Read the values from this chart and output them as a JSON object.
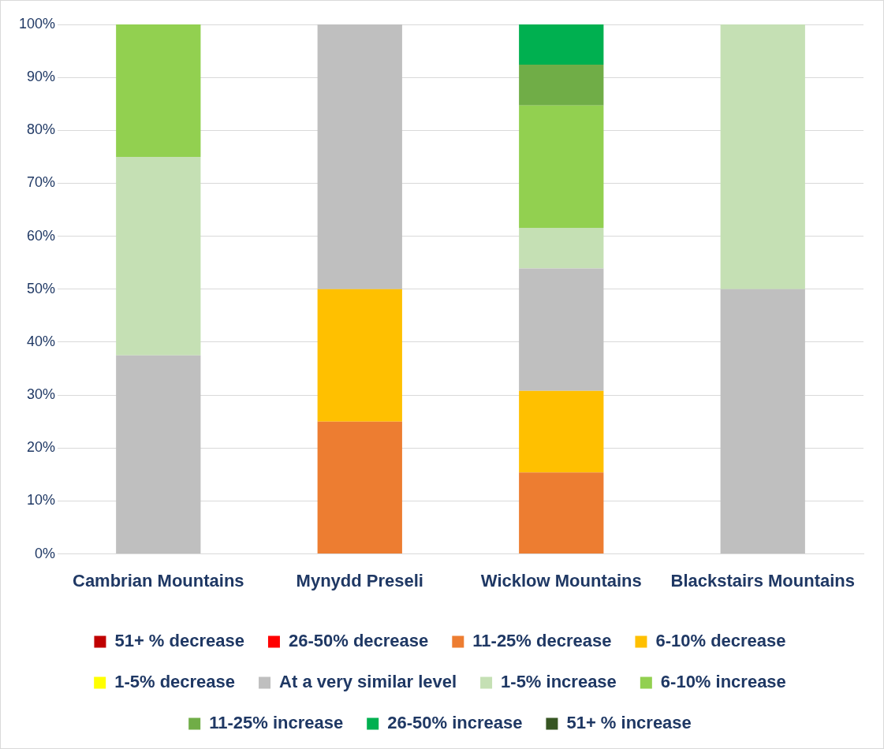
{
  "chart_data": {
    "type": "bar",
    "stacked": true,
    "categories": [
      "Cambrian Mountains",
      "Mynydd Preseli",
      "Wicklow Mountains",
      "Blackstairs Mountains"
    ],
    "ylim": [
      0,
      100
    ],
    "yticks": [
      {
        "value": 0,
        "label": "0%"
      },
      {
        "value": 10,
        "label": "10%"
      },
      {
        "value": 20,
        "label": "20%"
      },
      {
        "value": 30,
        "label": "30%"
      },
      {
        "value": 40,
        "label": "40%"
      },
      {
        "value": 50,
        "label": "50%"
      },
      {
        "value": 60,
        "label": "60%"
      },
      {
        "value": 70,
        "label": "70%"
      },
      {
        "value": 80,
        "label": "80%"
      },
      {
        "value": 90,
        "label": "90%"
      },
      {
        "value": 100,
        "label": "100%"
      }
    ],
    "grid": "y",
    "legend": "bottom",
    "series": [
      {
        "name": "51+ % decrease",
        "color": "#c00000",
        "values": [
          0,
          0,
          0,
          0
        ]
      },
      {
        "name": "26-50% decrease",
        "color": "#ff0000",
        "values": [
          0,
          0,
          0,
          0
        ]
      },
      {
        "name": "11-25% decrease",
        "color": "#ed7d31",
        "values": [
          0,
          25,
          15.4,
          0
        ]
      },
      {
        "name": "6-10% decrease",
        "color": "#ffc000",
        "values": [
          0,
          25,
          15.4,
          0
        ]
      },
      {
        "name": "1-5% decrease",
        "color": "#ffff00",
        "values": [
          0,
          0,
          0,
          0
        ]
      },
      {
        "name": "At a very similar level",
        "color": "#bfbfbf",
        "values": [
          37.5,
          50,
          23.1,
          50
        ]
      },
      {
        "name": "1-5% increase",
        "color": "#c5e0b4",
        "values": [
          37.5,
          0,
          7.7,
          50
        ]
      },
      {
        "name": "6-10% increase",
        "color": "#92d050",
        "values": [
          25,
          0,
          23.1,
          0
        ]
      },
      {
        "name": "11-25% increase",
        "color": "#70ad47",
        "values": [
          0,
          0,
          7.7,
          0
        ]
      },
      {
        "name": "26-50% increase",
        "color": "#00b050",
        "values": [
          0,
          0,
          7.7,
          0
        ]
      },
      {
        "name": "51+ % increase",
        "color": "#375623",
        "values": [
          0,
          0,
          0,
          0
        ]
      }
    ]
  }
}
